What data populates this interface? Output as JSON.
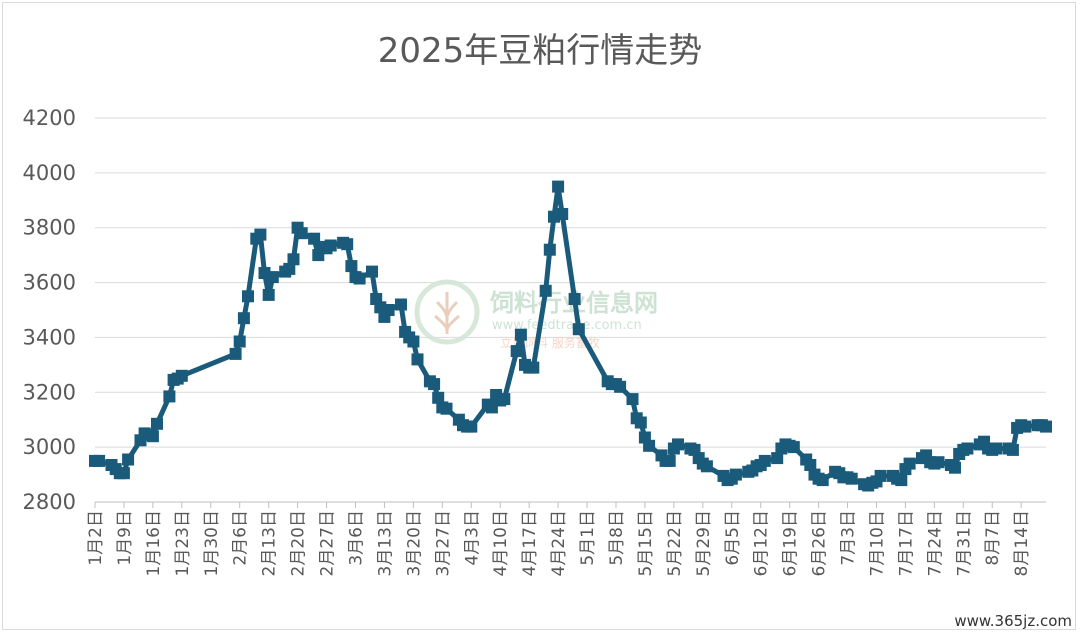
{
  "chart_data": {
    "type": "line",
    "title": "2025年豆粕行情走势",
    "ylim": [
      2800,
      4200
    ],
    "yticks": [
      2800,
      3000,
      3200,
      3400,
      3600,
      3800,
      4000,
      4200
    ],
    "grid": true,
    "legend": "none",
    "xticks": [
      "1月2日",
      "1月9日",
      "1月16日",
      "1月23日",
      "1月30日",
      "2月6日",
      "2月13日",
      "2月20日",
      "2月27日",
      "3月6日",
      "3月13日",
      "3月20日",
      "3月27日",
      "4月3日",
      "4月10日",
      "4月17日",
      "4月24日",
      "5月1日",
      "5月8日",
      "5月15日",
      "5月22日",
      "5月29日",
      "6月5日",
      "6月12日",
      "6月19日",
      "6月26日",
      "7月3日",
      "7月10日",
      "7月17日",
      "7月24日",
      "7月31日",
      "8月7日",
      "8月14日"
    ],
    "series": [
      {
        "color": "#1a5a7a",
        "marker": "square",
        "points": [
          [
            "2025-01-02",
            2950
          ],
          [
            "2025-01-03",
            2950
          ],
          [
            "2025-01-06",
            2935
          ],
          [
            "2025-01-07",
            2920
          ],
          [
            "2025-01-08",
            2905
          ],
          [
            "2025-01-09",
            2905
          ],
          [
            "2025-01-10",
            2955
          ],
          [
            "2025-01-13",
            3025
          ],
          [
            "2025-01-14",
            3050
          ],
          [
            "2025-01-15",
            3045
          ],
          [
            "2025-01-16",
            3040
          ],
          [
            "2025-01-17",
            3085
          ],
          [
            "2025-01-20",
            3185
          ],
          [
            "2025-01-21",
            3245
          ],
          [
            "2025-01-22",
            3250
          ],
          [
            "2025-01-23",
            3260
          ],
          [
            "2025-02-05",
            3340
          ],
          [
            "2025-02-06",
            3385
          ],
          [
            "2025-02-07",
            3470
          ],
          [
            "2025-02-08",
            3550
          ],
          [
            "2025-02-10",
            3760
          ],
          [
            "2025-02-11",
            3775
          ],
          [
            "2025-02-12",
            3635
          ],
          [
            "2025-02-13",
            3555
          ],
          [
            "2025-02-14",
            3620
          ],
          [
            "2025-02-17",
            3640
          ],
          [
            "2025-02-18",
            3650
          ],
          [
            "2025-02-19",
            3685
          ],
          [
            "2025-02-20",
            3800
          ],
          [
            "2025-02-21",
            3780
          ],
          [
            "2025-02-24",
            3760
          ],
          [
            "2025-02-25",
            3700
          ],
          [
            "2025-02-26",
            3730
          ],
          [
            "2025-02-27",
            3725
          ],
          [
            "2025-02-28",
            3735
          ],
          [
            "2025-03-03",
            3745
          ],
          [
            "2025-03-04",
            3740
          ],
          [
            "2025-03-05",
            3660
          ],
          [
            "2025-03-06",
            3620
          ],
          [
            "2025-03-07",
            3615
          ],
          [
            "2025-03-10",
            3640
          ],
          [
            "2025-03-11",
            3540
          ],
          [
            "2025-03-12",
            3510
          ],
          [
            "2025-03-13",
            3475
          ],
          [
            "2025-03-14",
            3500
          ],
          [
            "2025-03-17",
            3520
          ],
          [
            "2025-03-18",
            3420
          ],
          [
            "2025-03-19",
            3400
          ],
          [
            "2025-03-20",
            3385
          ],
          [
            "2025-03-21",
            3320
          ],
          [
            "2025-03-24",
            3240
          ],
          [
            "2025-03-25",
            3230
          ],
          [
            "2025-03-26",
            3180
          ],
          [
            "2025-03-27",
            3145
          ],
          [
            "2025-03-28",
            3140
          ],
          [
            "2025-03-31",
            3100
          ],
          [
            "2025-04-01",
            3080
          ],
          [
            "2025-04-02",
            3075
          ],
          [
            "2025-04-03",
            3075
          ],
          [
            "2025-04-07",
            3155
          ],
          [
            "2025-04-08",
            3145
          ],
          [
            "2025-04-09",
            3190
          ],
          [
            "2025-04-10",
            3170
          ],
          [
            "2025-04-11",
            3175
          ],
          [
            "2025-04-14",
            3350
          ],
          [
            "2025-04-15",
            3410
          ],
          [
            "2025-04-16",
            3300
          ],
          [
            "2025-04-17",
            3290
          ],
          [
            "2025-04-18",
            3290
          ],
          [
            "2025-04-21",
            3570
          ],
          [
            "2025-04-22",
            3720
          ],
          [
            "2025-04-23",
            3840
          ],
          [
            "2025-04-24",
            3950
          ],
          [
            "2025-04-25",
            3850
          ],
          [
            "2025-04-28",
            3540
          ],
          [
            "2025-04-29",
            3430
          ],
          [
            "2025-05-06",
            3240
          ],
          [
            "2025-05-07",
            3230
          ],
          [
            "2025-05-08",
            3230
          ],
          [
            "2025-05-09",
            3220
          ],
          [
            "2025-05-12",
            3175
          ],
          [
            "2025-05-13",
            3105
          ],
          [
            "2025-05-14",
            3090
          ],
          [
            "2025-05-15",
            3035
          ],
          [
            "2025-05-16",
            3005
          ],
          [
            "2025-05-19",
            2970
          ],
          [
            "2025-05-20",
            2950
          ],
          [
            "2025-05-21",
            2950
          ],
          [
            "2025-05-22",
            2995
          ],
          [
            "2025-05-23",
            3010
          ],
          [
            "2025-05-26",
            2995
          ],
          [
            "2025-05-27",
            2990
          ],
          [
            "2025-05-28",
            2960
          ],
          [
            "2025-05-29",
            2940
          ],
          [
            "2025-05-30",
            2930
          ],
          [
            "2025-06-03",
            2895
          ],
          [
            "2025-06-04",
            2880
          ],
          [
            "2025-06-05",
            2885
          ],
          [
            "2025-06-06",
            2900
          ],
          [
            "2025-06-09",
            2910
          ],
          [
            "2025-06-10",
            2915
          ],
          [
            "2025-06-11",
            2930
          ],
          [
            "2025-06-12",
            2935
          ],
          [
            "2025-06-13",
            2950
          ],
          [
            "2025-06-16",
            2960
          ],
          [
            "2025-06-17",
            2995
          ],
          [
            "2025-06-18",
            3010
          ],
          [
            "2025-06-19",
            3005
          ],
          [
            "2025-06-20",
            3000
          ],
          [
            "2025-06-23",
            2955
          ],
          [
            "2025-06-24",
            2935
          ],
          [
            "2025-06-25",
            2900
          ],
          [
            "2025-06-26",
            2885
          ],
          [
            "2025-06-27",
            2880
          ],
          [
            "2025-06-30",
            2910
          ],
          [
            "2025-07-01",
            2905
          ],
          [
            "2025-07-02",
            2890
          ],
          [
            "2025-07-03",
            2890
          ],
          [
            "2025-07-04",
            2885
          ],
          [
            "2025-07-07",
            2865
          ],
          [
            "2025-07-08",
            2860
          ],
          [
            "2025-07-09",
            2870
          ],
          [
            "2025-07-10",
            2875
          ],
          [
            "2025-07-11",
            2895
          ],
          [
            "2025-07-14",
            2895
          ],
          [
            "2025-07-15",
            2885
          ],
          [
            "2025-07-16",
            2880
          ],
          [
            "2025-07-17",
            2920
          ],
          [
            "2025-07-18",
            2940
          ],
          [
            "2025-07-21",
            2960
          ],
          [
            "2025-07-22",
            2970
          ],
          [
            "2025-07-23",
            2945
          ],
          [
            "2025-07-24",
            2940
          ],
          [
            "2025-07-25",
            2945
          ],
          [
            "2025-07-28",
            2935
          ],
          [
            "2025-07-29",
            2925
          ],
          [
            "2025-07-30",
            2975
          ],
          [
            "2025-07-31",
            2990
          ],
          [
            "2025-08-01",
            2995
          ],
          [
            "2025-08-04",
            3010
          ],
          [
            "2025-08-05",
            3020
          ],
          [
            "2025-08-06",
            2995
          ],
          [
            "2025-08-07",
            2990
          ],
          [
            "2025-08-08",
            2995
          ],
          [
            "2025-08-11",
            2995
          ],
          [
            "2025-08-12",
            2990
          ],
          [
            "2025-08-13",
            3070
          ],
          [
            "2025-08-14",
            3080
          ],
          [
            "2025-08-15",
            3075
          ],
          [
            "2025-08-18",
            3080
          ],
          [
            "2025-08-19",
            3080
          ],
          [
            "2025-08-20",
            3075
          ]
        ]
      }
    ]
  },
  "watermark": {
    "name": "饲料行业信息网",
    "url": "www.feedtrade.com.cn",
    "slogan": "立足饲料  服务畜牧"
  },
  "source_text": "www.365jz.com"
}
